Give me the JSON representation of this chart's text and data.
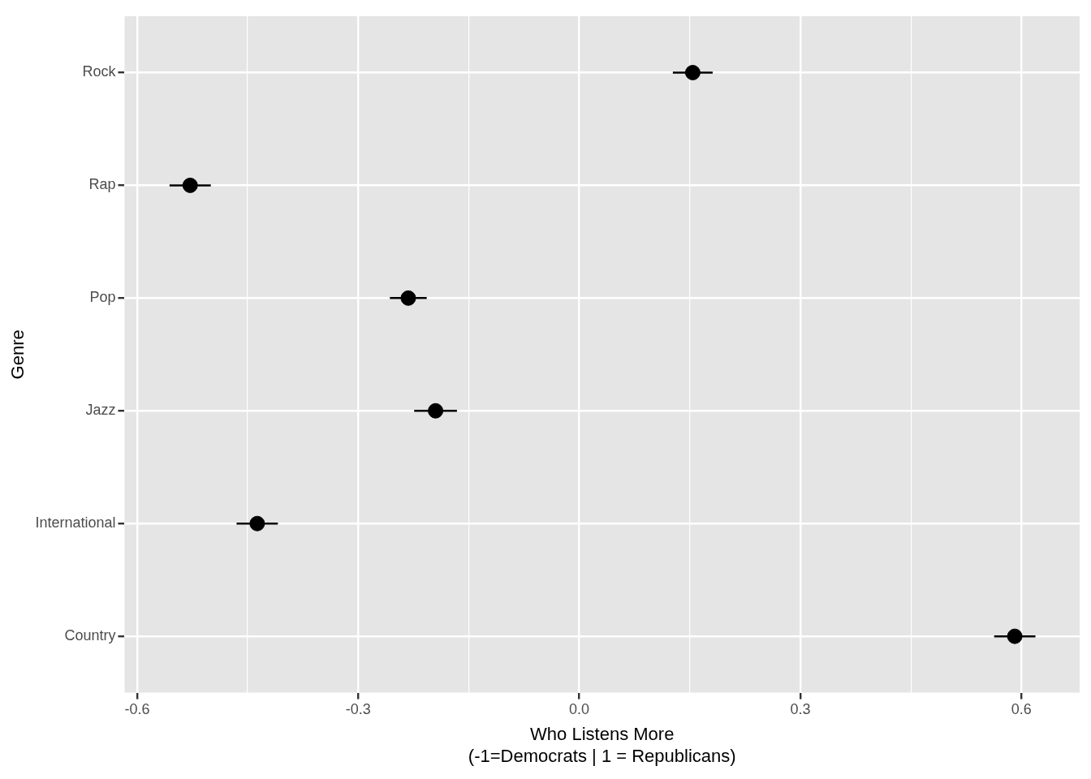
{
  "chart_data": {
    "type": "scatter",
    "orientation": "horizontal",
    "xlabel": "Who Listens More\n(-1=Democrats | 1 = Republicans)",
    "ylabel": "Genre",
    "categories": [
      "Rock",
      "Rap",
      "Pop",
      "Jazz",
      "International",
      "Country"
    ],
    "values": [
      0.154,
      -0.528,
      -0.232,
      -0.195,
      -0.437,
      0.591
    ],
    "errors": [
      0.027,
      0.028,
      0.025,
      0.029,
      0.028,
      0.028
    ],
    "color": "#000000",
    "marker": "circle",
    "xlim": [
      -0.617,
      0.679
    ],
    "xticks": [
      {
        "value": -0.6,
        "label": "-0.6"
      },
      {
        "value": -0.45,
        "label": null
      },
      {
        "value": -0.3,
        "label": "-0.3"
      },
      {
        "value": -0.15,
        "label": null
      },
      {
        "value": 0,
        "label": "0.0"
      },
      {
        "value": 0.15,
        "label": null
      },
      {
        "value": 0.3,
        "label": "0.3"
      },
      {
        "value": 0.45,
        "label": null
      },
      {
        "value": 0.6,
        "label": "0.6"
      }
    ],
    "grid": true,
    "legend": false
  }
}
